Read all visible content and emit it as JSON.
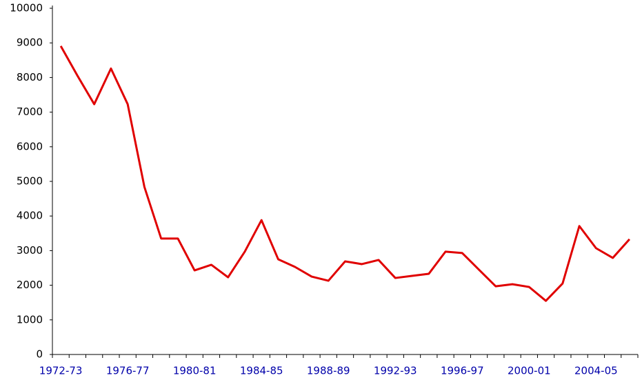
{
  "chart_data": {
    "type": "line",
    "categories": [
      "1972-73",
      null,
      null,
      null,
      "1976-77",
      null,
      null,
      null,
      "1980-81",
      null,
      null,
      null,
      "1984-85",
      null,
      null,
      null,
      "1988-89",
      null,
      null,
      null,
      "1992-93",
      null,
      null,
      null,
      "1996-97",
      null,
      null,
      null,
      "2000-01",
      null,
      null,
      null,
      "2004-05",
      null,
      null
    ],
    "series": [
      {
        "color": "#e00000",
        "values": [
          8910,
          8050,
          7230,
          8260,
          7230,
          4840,
          3350,
          3350,
          2430,
          2590,
          2230,
          2970,
          3880,
          2750,
          2530,
          2250,
          2130,
          2690,
          2610,
          2730,
          2210,
          2270,
          2330,
          2970,
          2930,
          2450,
          1970,
          2030,
          1950,
          1550,
          2050,
          3710,
          3070,
          2790,
          3330
        ]
      }
    ],
    "ylim": [
      0,
      10000
    ],
    "yticks": [
      0,
      1000,
      2000,
      3000,
      4000,
      5000,
      6000,
      7000,
      8000,
      9000,
      10000
    ],
    "grid": false
  }
}
